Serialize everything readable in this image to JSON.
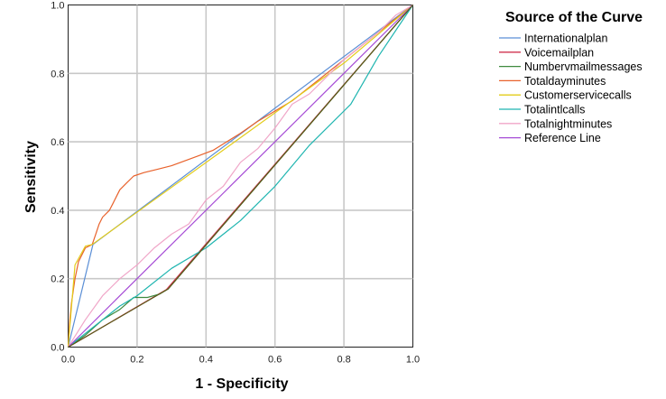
{
  "chart_data": {
    "type": "line",
    "xlabel": "1 - Specificity",
    "ylabel": "Sensitivity",
    "xlim": [
      0,
      1
    ],
    "ylim": [
      0,
      1
    ],
    "xticks": [
      "0.0",
      "0.2",
      "0.4",
      "0.6",
      "0.8",
      "1.0"
    ],
    "yticks": [
      "0.0",
      "0.2",
      "0.4",
      "0.6",
      "0.8",
      "1.0"
    ],
    "grid": true,
    "legend_title": "Source of the Curve",
    "legend_position": "top-right",
    "series": [
      {
        "name": "Internationalplan",
        "color": "#5b8fd6",
        "points": [
          [
            0,
            0
          ],
          [
            0.072,
            0.3
          ],
          [
            1,
            1
          ]
        ]
      },
      {
        "name": "Voicemailplan",
        "color": "#d1334f",
        "points": [
          [
            0,
            0
          ],
          [
            0.285,
            0.168
          ],
          [
            1,
            1
          ]
        ]
      },
      {
        "name": "Numbervmailmessages",
        "color": "#3f8a3f",
        "points": [
          [
            0,
            0
          ],
          [
            0.05,
            0.035
          ],
          [
            0.1,
            0.08
          ],
          [
            0.15,
            0.11
          ],
          [
            0.19,
            0.145
          ],
          [
            0.23,
            0.145
          ],
          [
            0.265,
            0.155
          ],
          [
            0.29,
            0.17
          ],
          [
            1,
            1
          ]
        ]
      },
      {
        "name": "Totaldayminutes",
        "color": "#e8622c",
        "points": [
          [
            0,
            0
          ],
          [
            0.005,
            0.08
          ],
          [
            0.01,
            0.13
          ],
          [
            0.02,
            0.2
          ],
          [
            0.03,
            0.25
          ],
          [
            0.05,
            0.29
          ],
          [
            0.07,
            0.3
          ],
          [
            0.08,
            0.33
          ],
          [
            0.09,
            0.36
          ],
          [
            0.1,
            0.38
          ],
          [
            0.12,
            0.4
          ],
          [
            0.13,
            0.42
          ],
          [
            0.14,
            0.44
          ],
          [
            0.15,
            0.46
          ],
          [
            0.17,
            0.48
          ],
          [
            0.19,
            0.5
          ],
          [
            0.22,
            0.51
          ],
          [
            0.26,
            0.52
          ],
          [
            0.3,
            0.53
          ],
          [
            0.34,
            0.545
          ],
          [
            0.38,
            0.56
          ],
          [
            0.42,
            0.575
          ],
          [
            0.46,
            0.6
          ],
          [
            0.5,
            0.625
          ],
          [
            0.55,
            0.66
          ],
          [
            0.6,
            0.69
          ],
          [
            0.65,
            0.72
          ],
          [
            0.7,
            0.76
          ],
          [
            0.75,
            0.8
          ],
          [
            0.8,
            0.84
          ],
          [
            0.85,
            0.88
          ],
          [
            0.9,
            0.92
          ],
          [
            0.95,
            0.96
          ],
          [
            1,
            1
          ]
        ]
      },
      {
        "name": "Customerservicecalls",
        "color": "#e3cc1a",
        "points": [
          [
            0,
            0
          ],
          [
            0.02,
            0.24
          ],
          [
            0.05,
            0.295
          ],
          [
            0.07,
            0.3
          ],
          [
            0.8,
            0.83
          ],
          [
            1,
            1
          ]
        ]
      },
      {
        "name": "Totalintlcalls",
        "color": "#1fb5b0",
        "points": [
          [
            0,
            0
          ],
          [
            0.05,
            0.04
          ],
          [
            0.1,
            0.08
          ],
          [
            0.15,
            0.12
          ],
          [
            0.2,
            0.15
          ],
          [
            0.3,
            0.23
          ],
          [
            0.4,
            0.29
          ],
          [
            0.5,
            0.37
          ],
          [
            0.6,
            0.47
          ],
          [
            0.7,
            0.59
          ],
          [
            0.8,
            0.69
          ],
          [
            0.82,
            0.71
          ],
          [
            0.9,
            0.85
          ],
          [
            1,
            1
          ]
        ]
      },
      {
        "name": "Totalnightminutes",
        "color": "#f0a6c8",
        "points": [
          [
            0,
            0
          ],
          [
            0.05,
            0.08
          ],
          [
            0.1,
            0.15
          ],
          [
            0.15,
            0.2
          ],
          [
            0.2,
            0.24
          ],
          [
            0.25,
            0.29
          ],
          [
            0.3,
            0.33
          ],
          [
            0.35,
            0.36
          ],
          [
            0.4,
            0.43
          ],
          [
            0.45,
            0.47
          ],
          [
            0.5,
            0.54
          ],
          [
            0.55,
            0.58
          ],
          [
            0.6,
            0.64
          ],
          [
            0.65,
            0.71
          ],
          [
            0.7,
            0.74
          ],
          [
            0.75,
            0.79
          ],
          [
            0.8,
            0.84
          ],
          [
            0.85,
            0.88
          ],
          [
            0.9,
            0.92
          ],
          [
            0.95,
            0.97
          ],
          [
            1,
            1
          ]
        ]
      },
      {
        "name": "Reference Line",
        "color": "#a64cd6",
        "points": [
          [
            0,
            0
          ],
          [
            1,
            1
          ]
        ]
      },
      {
        "name": "",
        "color": "#5a5a1a",
        "points": [
          [
            0,
            0
          ],
          [
            0.29,
            0.17
          ],
          [
            1,
            1
          ]
        ]
      }
    ]
  }
}
